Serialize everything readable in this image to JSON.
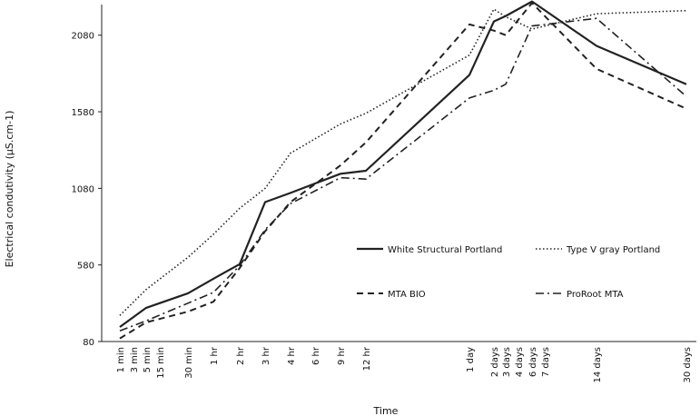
{
  "chart_data": {
    "type": "line",
    "title": "",
    "xlabel": "Time",
    "ylabel": "Electrical condutivity (µS.cm-1)",
    "ylim": [
      80,
      2280
    ],
    "yticks": [
      80,
      580,
      1080,
      1580,
      2080
    ],
    "grid": false,
    "legend_placement": "lower-right",
    "categories": [
      "1 min",
      "3 min",
      "5 min",
      "15 min",
      "30 min",
      "1 hr",
      "2 hr",
      "3 hr",
      "4 hr",
      "6 hr",
      "9 hr",
      "12 hr",
      "1 day",
      "2 days",
      "3 days",
      "4 days",
      "6 days",
      "7 days",
      "14 days",
      "30 days"
    ],
    "series": [
      {
        "name": "White Structural Portland",
        "dash": "solid",
        "points": [
          [
            "1 min",
            175
          ],
          [
            "5 min",
            300
          ],
          [
            "30 min",
            395
          ],
          [
            "1 hr",
            490
          ],
          [
            "2 hr",
            585
          ],
          [
            "3 hr",
            990
          ],
          [
            "4 hr",
            1050
          ],
          [
            "9 hr",
            1175
          ],
          [
            "12 hr",
            1195
          ],
          [
            "1 day",
            1820
          ],
          [
            "2 days",
            2170
          ],
          [
            "3 days",
            2205
          ],
          [
            "6 days",
            2300
          ],
          [
            "14 days",
            2010
          ],
          [
            "30 days",
            1760
          ]
        ]
      },
      {
        "name": "Type V gray Portland",
        "dash": "dotted",
        "points": [
          [
            "1 min",
            250
          ],
          [
            "5 min",
            420
          ],
          [
            "30 min",
            630
          ],
          [
            "1 hr",
            780
          ],
          [
            "2 hr",
            950
          ],
          [
            "3 hr",
            1080
          ],
          [
            "4 hr",
            1310
          ],
          [
            "9 hr",
            1500
          ],
          [
            "12 hr",
            1570
          ],
          [
            "1 day",
            1950
          ],
          [
            "2 days",
            2250
          ],
          [
            "3 days",
            2200
          ],
          [
            "6 days",
            2120
          ],
          [
            "14 days",
            2220
          ],
          [
            "30 days",
            2240
          ]
        ]
      },
      {
        "name": "MTA BIO",
        "dash": "dashed",
        "points": [
          [
            "1 min",
            100
          ],
          [
            "5 min",
            205
          ],
          [
            "30 min",
            275
          ],
          [
            "1 hr",
            340
          ],
          [
            "2 hr",
            560
          ],
          [
            "3 hr",
            800
          ],
          [
            "4 hr",
            990
          ],
          [
            "9 hr",
            1230
          ],
          [
            "12 hr",
            1380
          ],
          [
            "1 day",
            2150
          ],
          [
            "2 days",
            2110
          ],
          [
            "3 days",
            2080
          ],
          [
            "6 days",
            2290
          ],
          [
            "14 days",
            1860
          ],
          [
            "30 days",
            1600
          ]
        ]
      },
      {
        "name": "ProRoot MTA",
        "dash": "dashdot",
        "points": [
          [
            "1 min",
            150
          ],
          [
            "5 min",
            215
          ],
          [
            "30 min",
            330
          ],
          [
            "1 hr",
            400
          ],
          [
            "2 hr",
            575
          ],
          [
            "3 hr",
            810
          ],
          [
            "4 hr",
            980
          ],
          [
            "9 hr",
            1150
          ],
          [
            "12 hr",
            1140
          ],
          [
            "1 day",
            1670
          ],
          [
            "2 days",
            1720
          ],
          [
            "3 days",
            1760
          ],
          [
            "6 days",
            2140
          ],
          [
            "14 days",
            2190
          ],
          [
            "30 days",
            1680
          ]
        ]
      }
    ]
  },
  "colors": {
    "line": "#222222",
    "axis": "#222222",
    "background": "#ffffff"
  }
}
